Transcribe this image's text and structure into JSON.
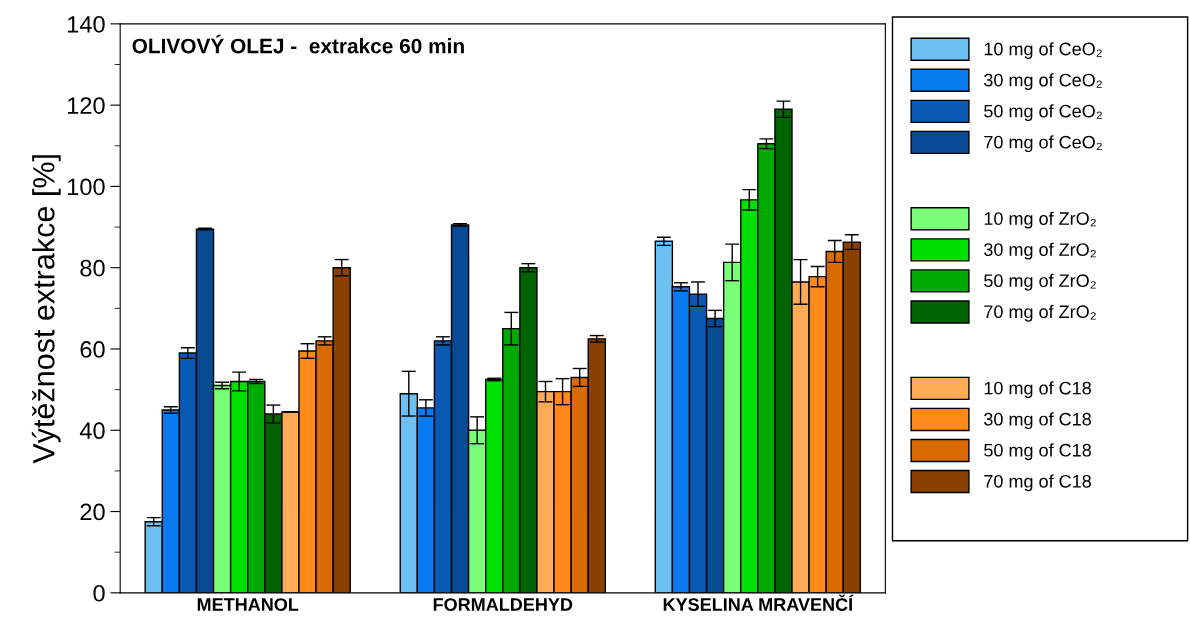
{
  "chart_data": {
    "type": "bar",
    "title": "OLIVOVÝ OLEJ -  extrakce 60 min",
    "ylabel": "Výtěžnost extrakce [%]",
    "categories": [
      "METHANOL",
      "FORMALDEHYD",
      "KYSELINA MRAVENČÍ"
    ],
    "ylim": [
      0,
      140
    ],
    "yticks": [
      0,
      20,
      40,
      60,
      80,
      100,
      120,
      140
    ],
    "legend": "right",
    "grid": false,
    "series": [
      {
        "name": "10 mg of CeO₂",
        "color": "#6cc0f2",
        "values": [
          17.5,
          49,
          86.5
        ],
        "errors": [
          1,
          5.5,
          1
        ]
      },
      {
        "name": "30 mg of CeO₂",
        "color": "#0a7bee",
        "values": [
          45,
          45.5,
          75.3
        ],
        "errors": [
          0.8,
          2,
          1
        ]
      },
      {
        "name": "50 mg of CeO₂",
        "color": "#0a5ab4",
        "values": [
          59,
          62,
          73.5
        ],
        "errors": [
          1.3,
          1,
          3
        ]
      },
      {
        "name": "70 mg of CeO₂",
        "color": "#084b94",
        "values": [
          89.5,
          90.5,
          67.5
        ],
        "errors": [
          0.2,
          0.3,
          2
        ]
      },
      {
        "name": "10 mg of ZrO₂",
        "color": "#7aff78",
        "values": [
          51,
          40,
          81.3
        ],
        "errors": [
          0.8,
          3.3,
          4.5
        ]
      },
      {
        "name": "30 mg of ZrO₂",
        "color": "#00e000",
        "values": [
          52,
          52.5,
          96.7
        ],
        "errors": [
          2.3,
          0.3,
          2.5
        ]
      },
      {
        "name": "50 mg of ZrO₂",
        "color": "#00aa00",
        "values": [
          52,
          65,
          110.5
        ],
        "errors": [
          0.5,
          4,
          1.2
        ]
      },
      {
        "name": "70 mg of ZrO₂",
        "color": "#006400",
        "values": [
          44,
          80,
          119
        ],
        "errors": [
          2.2,
          1,
          2
        ]
      },
      {
        "name": "10 mg of C18",
        "color": "#ffaa55",
        "values": [
          44.5,
          49.5,
          76.5
        ],
        "errors": [
          0,
          2.5,
          5.5
        ]
      },
      {
        "name": "30 mg of C18",
        "color": "#ff8a1a",
        "values": [
          59.5,
          49.5,
          77.8
        ],
        "errors": [
          1.8,
          3.2,
          2.5
        ]
      },
      {
        "name": "50 mg of C18",
        "color": "#d96a00",
        "values": [
          62,
          53,
          84
        ],
        "errors": [
          1,
          2.2,
          2.7
        ]
      },
      {
        "name": "70 mg of C18",
        "color": "#8a4000",
        "values": [
          80,
          62.5,
          86.3
        ],
        "errors": [
          2,
          0.8,
          1.8
        ]
      }
    ]
  }
}
